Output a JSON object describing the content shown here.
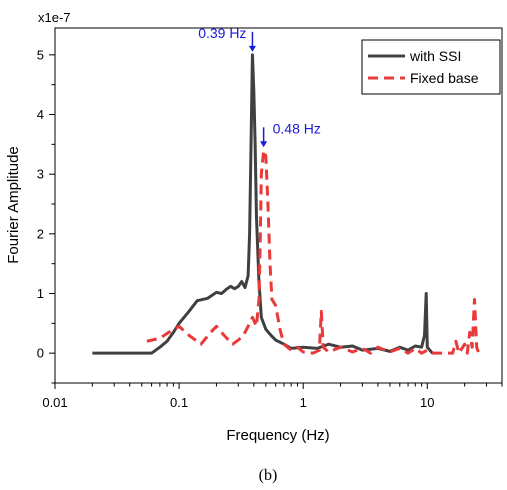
{
  "chart_data": {
    "type": "line",
    "xlabel": "Frequency (Hz)",
    "ylabel": "Fourier Amplitude",
    "y_multiplier": "x1e-7",
    "caption": "(b)",
    "x_scale": "log",
    "xlim": [
      0.01,
      40
    ],
    "ylim": [
      -0.5,
      5.45
    ],
    "x_ticks": [
      {
        "value": 0.01,
        "label": "0.01"
      },
      {
        "value": 0.1,
        "label": "0.1"
      },
      {
        "value": 1,
        "label": "1"
      },
      {
        "value": 10,
        "label": "10"
      }
    ],
    "y_ticks": [
      {
        "value": 0,
        "label": "0"
      },
      {
        "value": 1,
        "label": "1"
      },
      {
        "value": 2,
        "label": "2"
      },
      {
        "value": 3,
        "label": "3"
      },
      {
        "value": 4,
        "label": "4"
      },
      {
        "value": 5,
        "label": "5"
      }
    ],
    "grid": false,
    "legend_position": "top-right",
    "series": [
      {
        "name": "with SSI",
        "color": "#404040",
        "style": "solid",
        "points": [
          [
            0.02,
            0.0
          ],
          [
            0.06,
            0.0
          ],
          [
            0.07,
            0.1
          ],
          [
            0.08,
            0.2
          ],
          [
            0.09,
            0.35
          ],
          [
            0.1,
            0.5
          ],
          [
            0.12,
            0.7
          ],
          [
            0.14,
            0.88
          ],
          [
            0.17,
            0.92
          ],
          [
            0.2,
            1.02
          ],
          [
            0.22,
            1.0
          ],
          [
            0.24,
            1.07
          ],
          [
            0.26,
            1.12
          ],
          [
            0.28,
            1.08
          ],
          [
            0.3,
            1.12
          ],
          [
            0.32,
            1.2
          ],
          [
            0.34,
            1.1
          ],
          [
            0.36,
            1.3
          ],
          [
            0.37,
            2.0
          ],
          [
            0.38,
            3.5
          ],
          [
            0.39,
            5.0
          ],
          [
            0.4,
            4.4
          ],
          [
            0.41,
            3.5
          ],
          [
            0.42,
            2.3
          ],
          [
            0.44,
            1.2
          ],
          [
            0.46,
            0.6
          ],
          [
            0.5,
            0.4
          ],
          [
            0.55,
            0.3
          ],
          [
            0.6,
            0.22
          ],
          [
            0.7,
            0.15
          ],
          [
            0.8,
            0.08
          ],
          [
            1.0,
            0.1
          ],
          [
            1.3,
            0.08
          ],
          [
            1.6,
            0.15
          ],
          [
            2.0,
            0.1
          ],
          [
            2.5,
            0.12
          ],
          [
            3.0,
            0.05
          ],
          [
            4.0,
            0.08
          ],
          [
            5.0,
            0.03
          ],
          [
            6.0,
            0.1
          ],
          [
            7.0,
            0.05
          ],
          [
            8.0,
            0.12
          ],
          [
            9.0,
            0.1
          ],
          [
            9.5,
            0.3
          ],
          [
            9.8,
            1.0
          ],
          [
            10.0,
            0.1
          ],
          [
            11.0,
            0.0
          ]
        ]
      },
      {
        "name": "Fixed base",
        "color": "#e83a3a",
        "style": "dashed",
        "points": [
          [
            0.055,
            0.2
          ],
          [
            0.07,
            0.25
          ],
          [
            0.09,
            0.4
          ],
          [
            0.1,
            0.45
          ],
          [
            0.12,
            0.3
          ],
          [
            0.15,
            0.15
          ],
          [
            0.18,
            0.35
          ],
          [
            0.2,
            0.45
          ],
          [
            0.23,
            0.3
          ],
          [
            0.27,
            0.15
          ],
          [
            0.3,
            0.22
          ],
          [
            0.33,
            0.3
          ],
          [
            0.36,
            0.45
          ],
          [
            0.39,
            0.6
          ],
          [
            0.42,
            0.45
          ],
          [
            0.44,
            0.9
          ],
          [
            0.45,
            1.8
          ],
          [
            0.46,
            3.0
          ],
          [
            0.48,
            3.4
          ],
          [
            0.5,
            3.3
          ],
          [
            0.52,
            2.5
          ],
          [
            0.54,
            1.5
          ],
          [
            0.56,
            0.9
          ],
          [
            0.6,
            0.8
          ],
          [
            0.65,
            0.4
          ],
          [
            0.7,
            0.15
          ],
          [
            0.8,
            0.05
          ],
          [
            0.9,
            0.1
          ],
          [
            1.0,
            0.02
          ],
          [
            1.2,
            0.0
          ],
          [
            1.35,
            0.05
          ],
          [
            1.4,
            0.7
          ],
          [
            1.45,
            0.1
          ],
          [
            1.6,
            0.02
          ],
          [
            2.0,
            0.1
          ],
          [
            2.5,
            0.02
          ],
          [
            3.0,
            0.08
          ],
          [
            3.5,
            0.0
          ],
          [
            4.0,
            0.1
          ],
          [
            5.0,
            0.02
          ],
          [
            6.0,
            0.08
          ],
          [
            7.0,
            0.0
          ],
          [
            8.0,
            0.08
          ],
          [
            9.0,
            0.0
          ],
          [
            10.0,
            0.05
          ],
          [
            11.0,
            0.0
          ],
          [
            16.0,
            0.0
          ],
          [
            17.0,
            0.2
          ],
          [
            18.0,
            0.0
          ],
          [
            20.0,
            0.15
          ],
          [
            21.0,
            0.0
          ],
          [
            22.0,
            0.35
          ],
          [
            23.0,
            0.1
          ],
          [
            24.0,
            0.9
          ],
          [
            25.0,
            0.1
          ],
          [
            26.0,
            0.0
          ]
        ]
      }
    ],
    "annotations": [
      {
        "text": "0.39 Hz",
        "x": 0.39,
        "y": 5.0,
        "arrow": "down",
        "label_side": "left"
      },
      {
        "text": "0.48 Hz",
        "x": 0.48,
        "y": 3.4,
        "arrow": "down",
        "label_side": "right"
      }
    ]
  }
}
